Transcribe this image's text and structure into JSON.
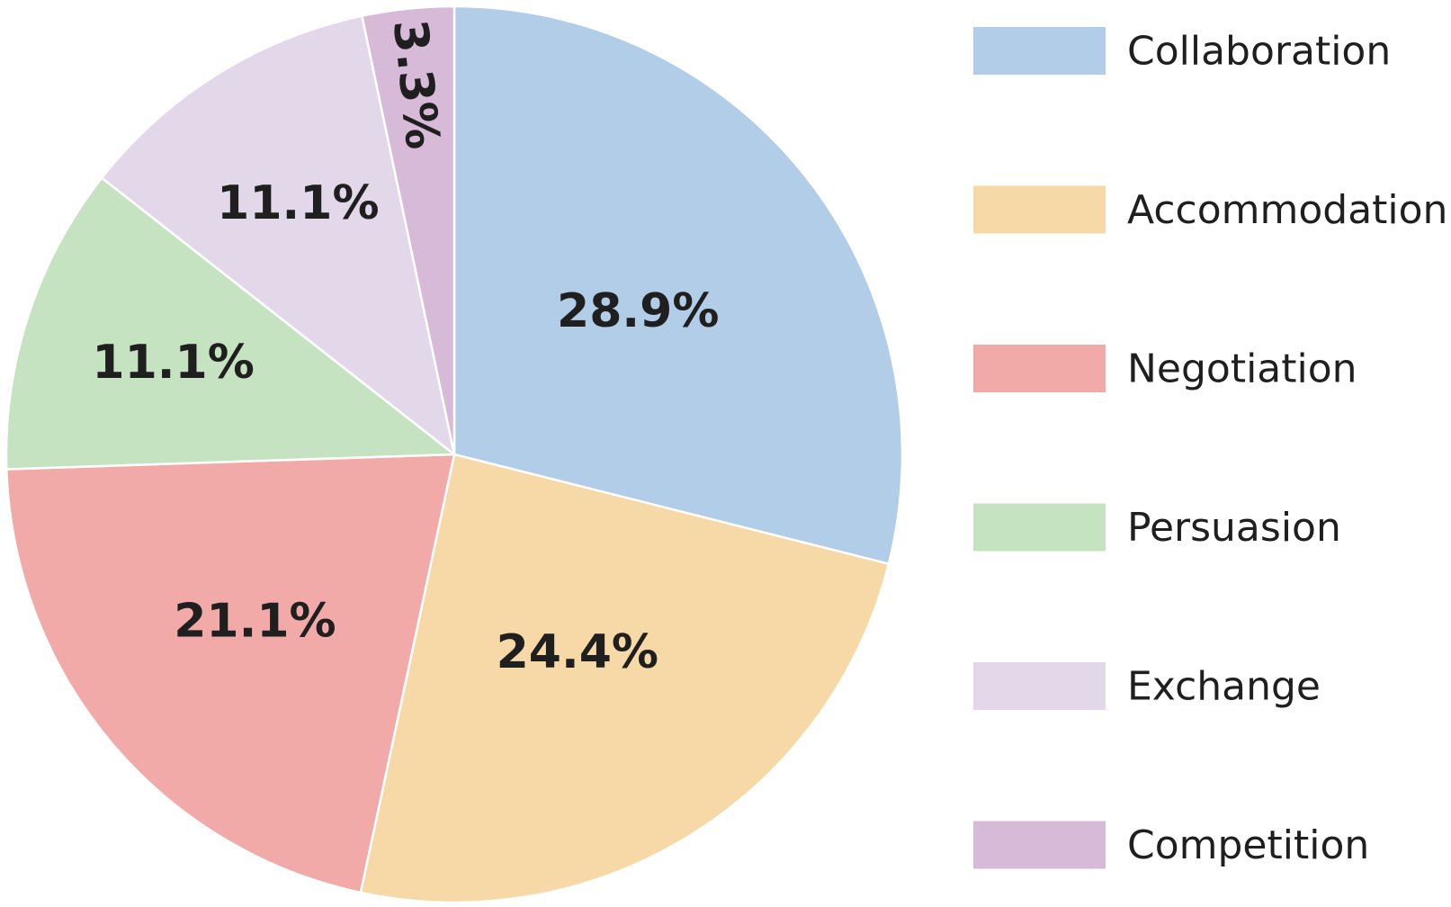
{
  "chart_data": {
    "type": "pie",
    "title": "",
    "start": "12 o'clock",
    "direction": "clockwise",
    "legend_position": "right",
    "slices": [
      {
        "label": "Collaboration",
        "value": 28.9,
        "value_label": "28.9%",
        "color": "#b2cde8"
      },
      {
        "label": "Accommodation",
        "value": 24.4,
        "value_label": "24.4%",
        "color": "#f6d9a6"
      },
      {
        "label": "Negotiation",
        "value": 21.1,
        "value_label": "21.1%",
        "color": "#f2aaa8"
      },
      {
        "label": "Persuasion",
        "value": 11.1,
        "value_label": "11.1%",
        "color": "#c6e3c1"
      },
      {
        "label": "Exchange",
        "value": 11.1,
        "value_label": "11.1%",
        "color": "#e3d8ea"
      },
      {
        "label": "Competition",
        "value": 3.3,
        "value_label": "3.3%",
        "color": "#d7b9d8"
      }
    ]
  }
}
